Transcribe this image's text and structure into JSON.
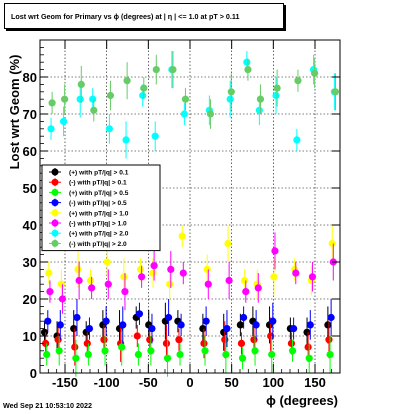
{
  "chart_data": {
    "type": "scatter",
    "title": "Lost wrt Geom for Primary vs ϕ (degrees) at | η | <= 1.0 at pT > 0.11",
    "xlabel": "ϕ (degrees)",
    "ylabel": "Lost wrt Geom (%)",
    "xlim": [
      -180,
      180
    ],
    "ylim": [
      0,
      90
    ],
    "xticks": [
      -150,
      -100,
      -50,
      0,
      50,
      100,
      150
    ],
    "yticks": [
      0,
      10,
      20,
      30,
      40,
      50,
      60,
      70,
      80
    ],
    "grid": true,
    "legend_position": "left-middle",
    "x_points": [
      -170,
      -155,
      -135,
      -120,
      -100,
      -80,
      -60,
      -45,
      -25,
      -10,
      20,
      45,
      65,
      80,
      100,
      125,
      145,
      170
    ],
    "series": [
      {
        "name": "(+) with pT/|q| > 0.1",
        "color": "#000000",
        "values": [
          11,
          10,
          12,
          11,
          13,
          12,
          15,
          13,
          14,
          14,
          12,
          11,
          13,
          14,
          13,
          12,
          11,
          13
        ]
      },
      {
        "name": "(-) with pT/|q| > 0.1",
        "color": "#ff0000",
        "values": [
          8,
          9,
          7,
          8,
          9,
          8,
          10,
          9,
          8,
          9,
          8,
          9,
          8,
          9,
          10,
          8,
          7,
          9
        ]
      },
      {
        "name": "(+) with pT/|q| > 0.5",
        "color": "#00ff00",
        "values": [
          5,
          6,
          4,
          5,
          6,
          7,
          5,
          6,
          4,
          5,
          6,
          5,
          4,
          6,
          5,
          6,
          4,
          5
        ]
      },
      {
        "name": "(-) with pT/|q| > 0.5",
        "color": "#0000ff",
        "values": [
          14,
          13,
          15,
          12,
          14,
          13,
          16,
          12,
          15,
          13,
          14,
          12,
          15,
          13,
          14,
          12,
          13,
          15
        ]
      },
      {
        "name": "(+) with pT/|q| > 1.0",
        "color": "#ffff00",
        "values": [
          27,
          24,
          28,
          25,
          30,
          26,
          28,
          27,
          24,
          37,
          28,
          35,
          25,
          24,
          26,
          28,
          25,
          35
        ]
      },
      {
        "name": "(-) with pT/|q| > 1.0",
        "color": "#ff00ff",
        "values": [
          22,
          20,
          25,
          23,
          24,
          22,
          26,
          29,
          28,
          27,
          24,
          25,
          22,
          23,
          33,
          27,
          26,
          30
        ]
      },
      {
        "name": "(+) with pT/|q| > 2.0",
        "color": "#00ffff",
        "values": [
          66,
          68,
          74,
          74,
          66,
          63,
          75,
          64,
          82,
          70,
          71,
          74,
          84,
          71,
          75,
          63,
          82,
          76
        ]
      },
      {
        "name": "(-) with pT/|q| > 2.0",
        "color": "#66cc66",
        "values": [
          73,
          74,
          78,
          71,
          75,
          79,
          77,
          82,
          82,
          74,
          70,
          76,
          82,
          74,
          77,
          79,
          81,
          76
        ]
      }
    ]
  },
  "footer": "Wed Sep 21 10:53:10 2022"
}
